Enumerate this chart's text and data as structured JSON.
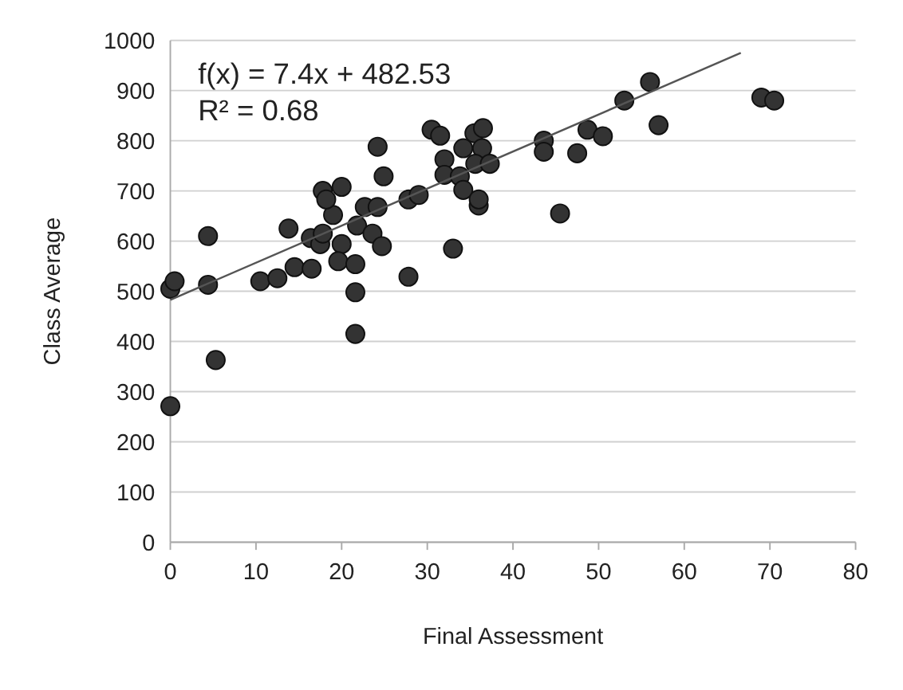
{
  "chart_data": {
    "type": "scatter",
    "xlabel": "Final Assessment",
    "ylabel": "Class Average",
    "xlim": [
      0,
      80
    ],
    "xticks": [
      0,
      10,
      20,
      30,
      40,
      50,
      60,
      70,
      80
    ],
    "ylim": [
      0,
      1000
    ],
    "yticks": [
      0,
      100,
      200,
      300,
      400,
      500,
      600,
      700,
      800,
      900,
      1000
    ],
    "grid": "y",
    "marker": "circle",
    "annotations": [
      "f(x) = 7.4x + 482.53",
      "R² = 0.68"
    ],
    "series": [
      {
        "color": "#333333",
        "x": [
          0,
          0.5,
          4.4,
          4.4,
          5.3,
          0,
          10.5,
          12.5,
          14.5,
          16.5,
          13.8,
          16.4,
          17.5,
          17.8,
          17.8,
          20,
          19,
          18.2,
          20,
          19.6,
          21.6,
          21.6,
          21.6,
          21.8,
          22.7,
          24.2,
          23.6,
          24.7,
          24.9,
          24.2,
          27.8,
          27.8,
          29,
          30.5,
          31.5,
          32,
          32,
          33,
          34.2,
          33.8,
          34.2,
          35.5,
          36.5,
          36.4,
          35.6,
          36,
          37.3,
          36,
          43.6,
          43.6,
          47.5,
          48.7,
          50.5,
          45.5,
          53,
          56,
          57,
          69,
          70.5
        ],
        "values": [
          505,
          520,
          513,
          610,
          363,
          271,
          520,
          526,
          548,
          545,
          625,
          606,
          594,
          615,
          700,
          708,
          652,
          683,
          594,
          560,
          554,
          498,
          415,
          631,
          668,
          668,
          615,
          590,
          729,
          788,
          529,
          683,
          692,
          822,
          810,
          763,
          732,
          585,
          785,
          729,
          702,
          815,
          825,
          785,
          754,
          671,
          754,
          683,
          800,
          778,
          775,
          822,
          809,
          655,
          880,
          917,
          831,
          886,
          880
        ]
      },
      {
        "type": "line",
        "color": "#555555",
        "line_style": "solid",
        "marker": "none",
        "x": [
          0,
          66.6
        ],
        "values": [
          483,
          975
        ]
      }
    ]
  }
}
